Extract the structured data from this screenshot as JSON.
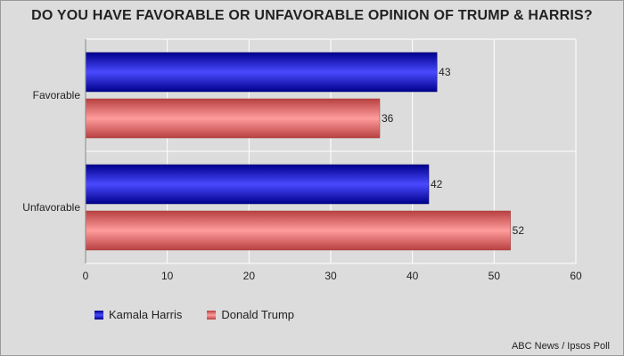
{
  "chart_data": {
    "type": "bar",
    "orientation": "horizontal",
    "title": "DO YOU HAVE FAVORABLE OR UNFAVORABLE OPINION OF TRUMP & HARRIS?",
    "categories": [
      "Favorable",
      "Unfavorable"
    ],
    "series": [
      {
        "name": "Kamala Harris",
        "values": [
          43,
          42
        ],
        "color": "#1a1aff"
      },
      {
        "name": "Donald Trump",
        "values": [
          36,
          52
        ],
        "color": "#f07070"
      }
    ],
    "xlim": [
      0,
      60
    ],
    "xticks": [
      "0",
      "10",
      "20",
      "30",
      "40",
      "50",
      "60"
    ],
    "grid": true,
    "legend": "bottom-left",
    "source": "ABC News / Ipsos Poll"
  }
}
